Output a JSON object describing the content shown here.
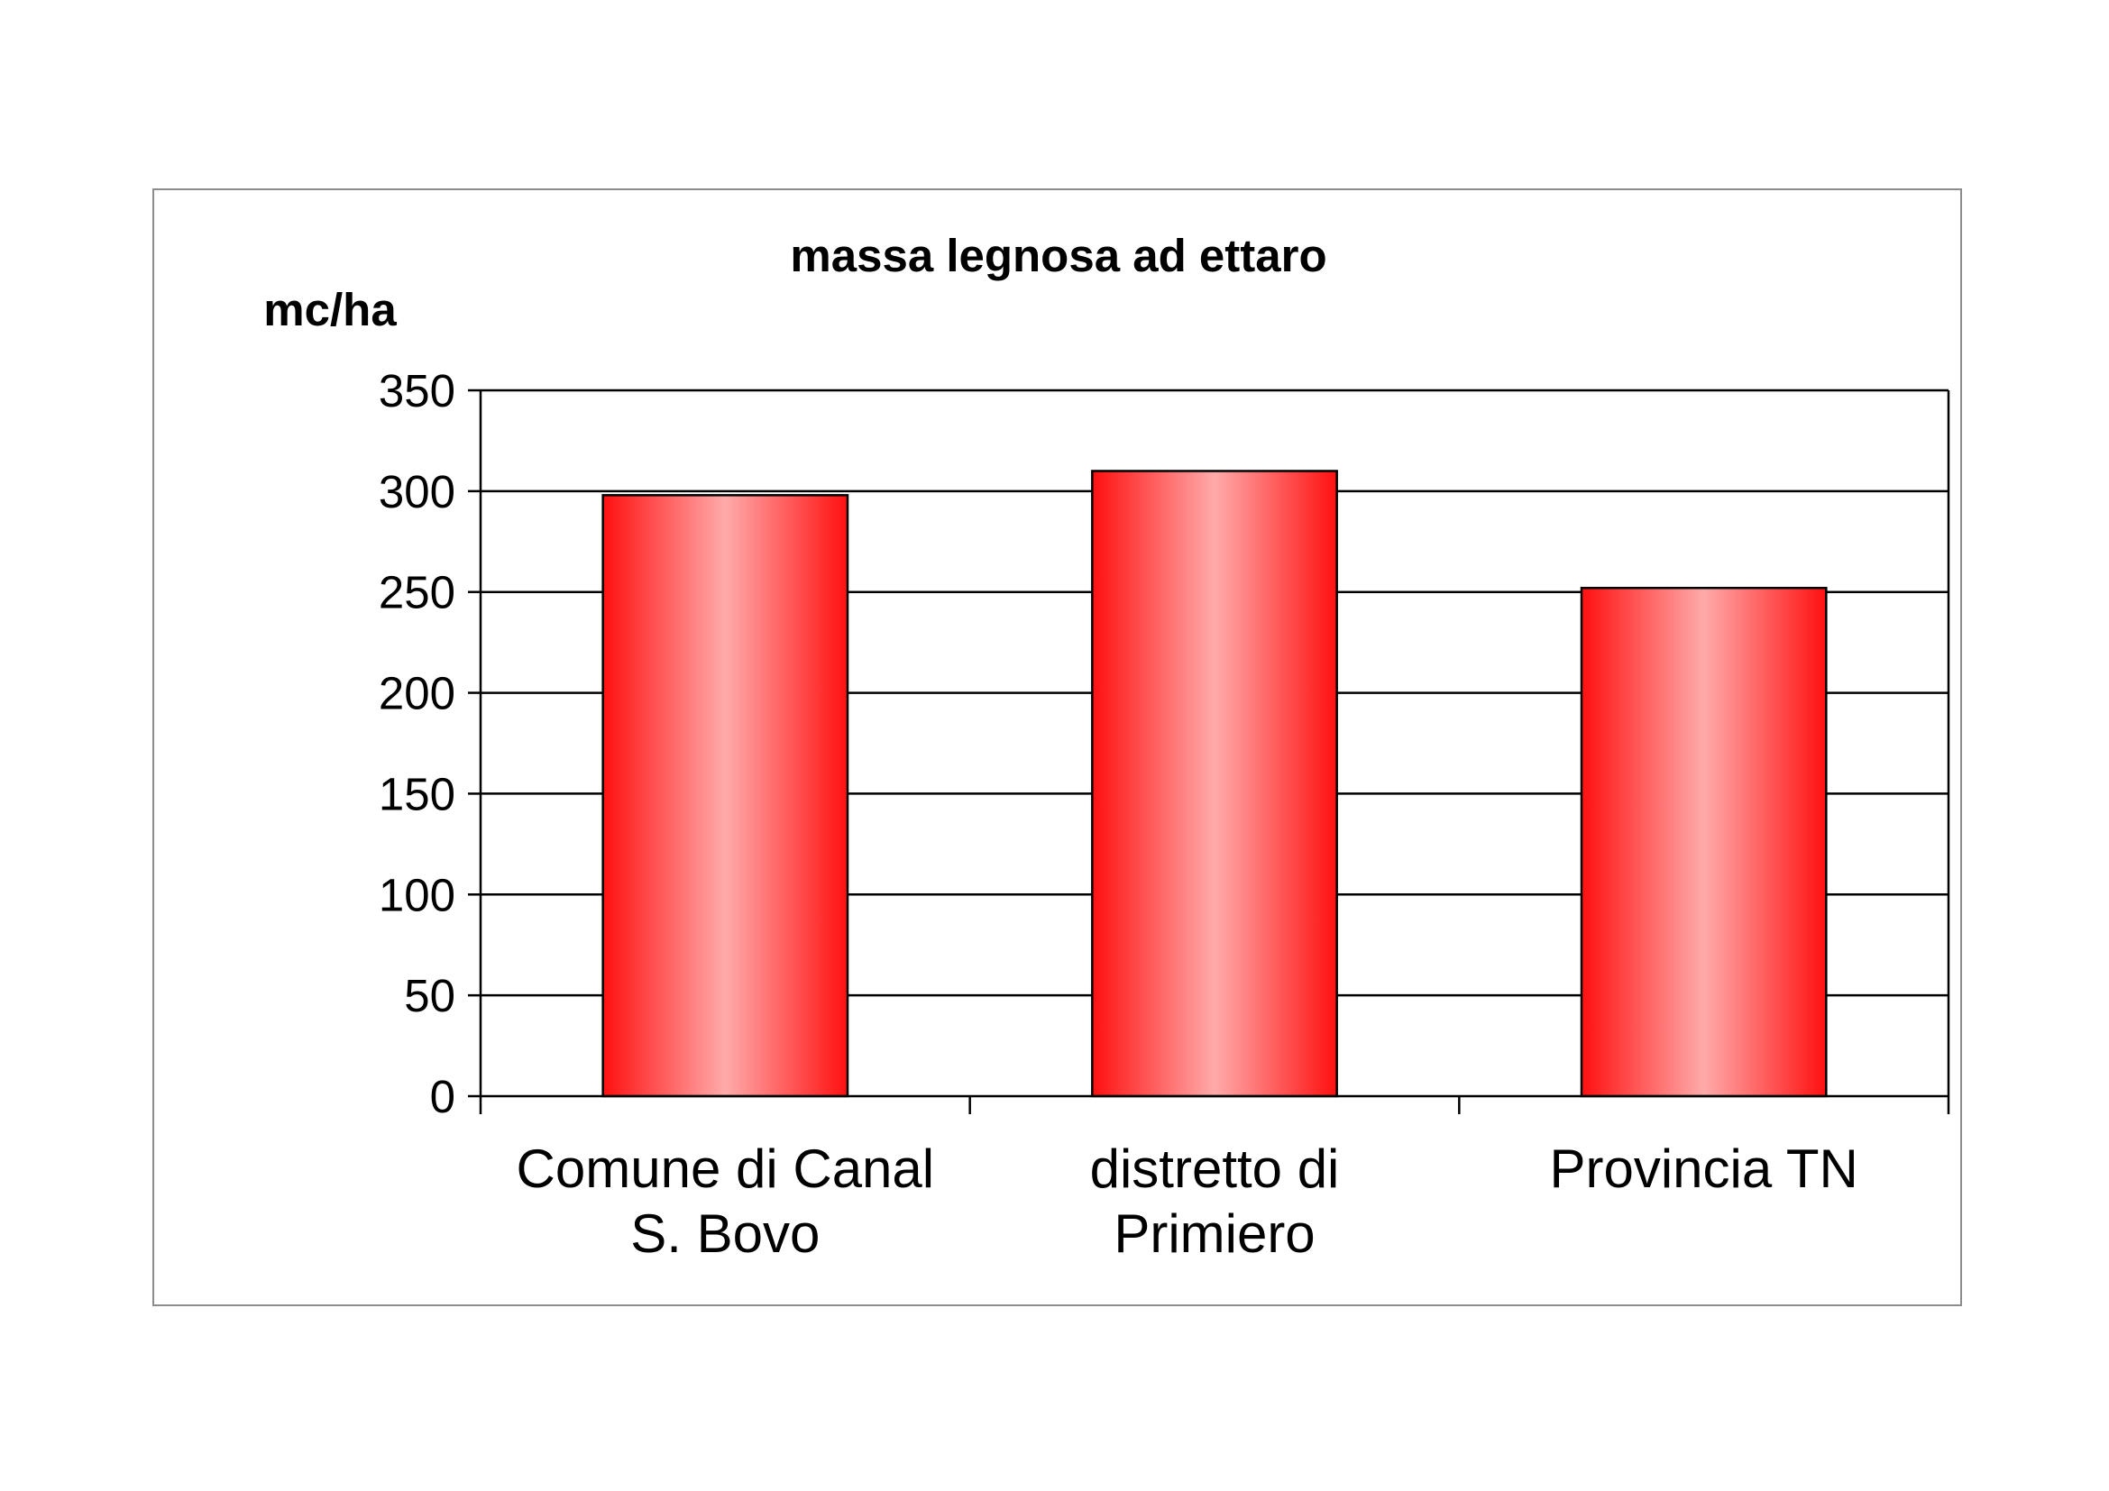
{
  "chart_data": {
    "type": "bar",
    "title": "massa legnosa ad ettaro",
    "ylabel": "mc/ha",
    "xlabel": "",
    "categories": [
      [
        "Comune di Canal",
        "S. Bovo"
      ],
      [
        "distretto di",
        "Primiero"
      ],
      [
        "Provincia TN"
      ]
    ],
    "values": [
      298,
      310,
      252
    ],
    "ylim": [
      0,
      350
    ],
    "yticks": [
      "0",
      "50",
      "100",
      "150",
      "200",
      "250",
      "300",
      "350"
    ],
    "grid": true,
    "legend": "none",
    "colors": {
      "bar_edge": "#ff1010",
      "bar_center": "#ffaaaa",
      "bar_outline": "#000000",
      "gridline": "#000000",
      "frame": "#8c8c8c"
    }
  }
}
